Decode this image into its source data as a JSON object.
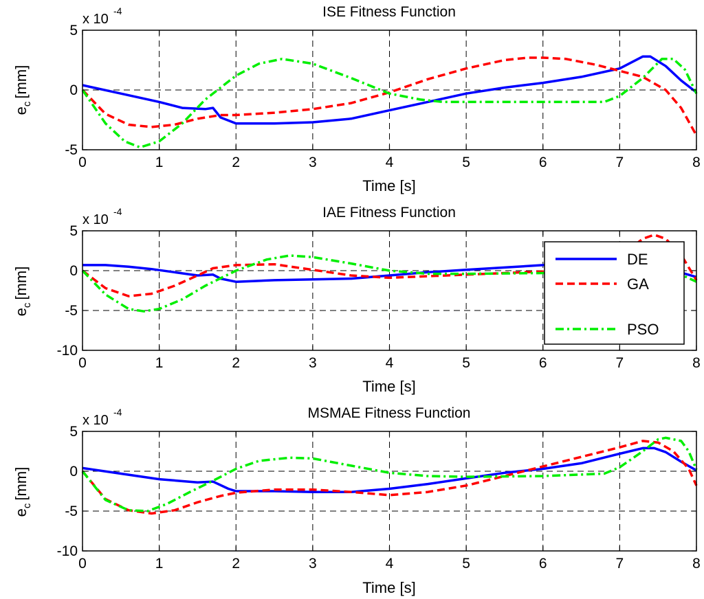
{
  "chart_data": [
    {
      "type": "line",
      "title": "ISE Fitness Function",
      "xlabel": "Time [s]",
      "ylabel": "e",
      "ylabel_sub": "c",
      "ylabel_unit": "[mm]",
      "multiplier_base": "x 10",
      "multiplier_exp": "-4",
      "xlim": [
        0,
        8
      ],
      "ylim": [
        -5,
        5
      ],
      "xticks": [
        0,
        1,
        2,
        3,
        4,
        5,
        6,
        7,
        8
      ],
      "yticks": [
        -5,
        0,
        5
      ],
      "grid": true,
      "series": [
        {
          "name": "DE",
          "color": "#0000ff",
          "style": "solid",
          "x": [
            0,
            0.5,
            1.0,
            1.3,
            1.6,
            1.7,
            1.8,
            2.0,
            2.5,
            3.0,
            3.5,
            4.0,
            4.5,
            5.0,
            5.5,
            6.0,
            6.5,
            7.0,
            7.3,
            7.4,
            7.6,
            7.8,
            8.0
          ],
          "y": [
            0.4,
            -0.3,
            -1.0,
            -1.5,
            -1.6,
            -1.5,
            -2.3,
            -2.8,
            -2.8,
            -2.7,
            -2.4,
            -1.7,
            -1.0,
            -0.3,
            0.2,
            0.6,
            1.1,
            1.8,
            2.8,
            2.8,
            2.0,
            0.8,
            -0.2
          ]
        },
        {
          "name": "GA",
          "color": "#ff0000",
          "style": "dashed",
          "x": [
            0,
            0.3,
            0.6,
            0.9,
            1.2,
            1.5,
            1.8,
            2.0,
            2.5,
            3.0,
            3.5,
            4.0,
            4.5,
            5.0,
            5.5,
            5.8,
            6.0,
            6.3,
            6.7,
            7.0,
            7.3,
            7.6,
            7.8,
            8.0
          ],
          "y": [
            0,
            -2.0,
            -2.9,
            -3.1,
            -2.9,
            -2.4,
            -2.1,
            -2.1,
            -1.9,
            -1.6,
            -1.1,
            -0.2,
            0.9,
            1.8,
            2.5,
            2.7,
            2.7,
            2.6,
            2.1,
            1.6,
            1.1,
            0,
            -1.5,
            -3.8
          ]
        },
        {
          "name": "PSO",
          "color": "#00ee00",
          "style": "dashdot",
          "x": [
            0,
            0.3,
            0.55,
            0.75,
            1.0,
            1.3,
            1.6,
            2.0,
            2.3,
            2.6,
            3.0,
            3.5,
            4.0,
            4.4,
            4.7,
            5.0,
            6.0,
            6.8,
            7.0,
            7.3,
            7.55,
            7.7,
            7.85,
            8.0
          ],
          "y": [
            0,
            -2.8,
            -4.3,
            -4.8,
            -4.3,
            -2.8,
            -0.8,
            1.2,
            2.2,
            2.6,
            2.2,
            1.0,
            -0.3,
            -0.8,
            -1.0,
            -1.0,
            -1.0,
            -1.0,
            -0.5,
            1.0,
            2.6,
            2.6,
            1.7,
            -0.3
          ]
        }
      ]
    },
    {
      "type": "line",
      "title": "IAE Fitness Function",
      "xlabel": "Time [s]",
      "ylabel": "e",
      "ylabel_sub": "c",
      "ylabel_unit": "[mm]",
      "multiplier_base": "x 10",
      "multiplier_exp": "-4",
      "xlim": [
        0,
        8
      ],
      "ylim": [
        -10,
        5
      ],
      "xticks": [
        0,
        1,
        2,
        3,
        4,
        5,
        6,
        7,
        8
      ],
      "yticks": [
        -10,
        -5,
        0,
        5
      ],
      "grid": true,
      "legend": {
        "position": "right",
        "entries": [
          "DE",
          "GA",
          "PSO"
        ]
      },
      "series": [
        {
          "name": "DE",
          "color": "#0000ff",
          "style": "solid",
          "x": [
            0,
            0.3,
            0.6,
            0.9,
            1.2,
            1.5,
            1.7,
            1.8,
            2.0,
            2.5,
            3.0,
            3.5,
            4.0,
            4.5,
            5.0,
            5.5,
            6.0,
            6.5,
            7.0,
            7.5,
            8.0
          ],
          "y": [
            0.7,
            0.7,
            0.5,
            0.2,
            -0.2,
            -0.6,
            -0.5,
            -1.0,
            -1.4,
            -1.2,
            -1.1,
            -1.0,
            -0.6,
            -0.2,
            0.1,
            0.4,
            0.7,
            0.8,
            0.8,
            0.6,
            -0.8
          ]
        },
        {
          "name": "GA",
          "color": "#ff0000",
          "style": "dashed",
          "x": [
            0,
            0.3,
            0.6,
            0.9,
            1.2,
            1.5,
            1.7,
            2.0,
            2.5,
            3.0,
            3.5,
            4.0,
            4.5,
            5.0,
            5.5,
            6.0,
            6.5,
            6.8,
            7.1,
            7.3,
            7.45,
            7.6,
            7.8,
            8.0
          ],
          "y": [
            0,
            -2.2,
            -3.2,
            -2.9,
            -1.9,
            -0.6,
            0.3,
            0.7,
            0.8,
            0.1,
            -0.6,
            -0.9,
            -0.7,
            -0.5,
            -0.3,
            -0.1,
            0.3,
            0.9,
            2.5,
            4.0,
            4.5,
            4.0,
            2.0,
            -1.2
          ]
        },
        {
          "name": "PSO",
          "color": "#00ee00",
          "style": "dashdot",
          "x": [
            0,
            0.3,
            0.6,
            0.8,
            1.0,
            1.3,
            1.6,
            2.0,
            2.4,
            2.7,
            3.0,
            3.5,
            4.0,
            4.5,
            5.0,
            6.0,
            7.0,
            7.5,
            7.8,
            8.0
          ],
          "y": [
            0,
            -3.0,
            -4.8,
            -5.1,
            -4.8,
            -3.6,
            -1.9,
            0,
            1.4,
            1.9,
            1.7,
            0.9,
            0,
            -0.4,
            -0.4,
            -0.3,
            -0.3,
            -0.2,
            -0.5,
            -1.4
          ]
        }
      ]
    },
    {
      "type": "line",
      "title": "MSMAE Fitness Function",
      "xlabel": "Time [s]",
      "ylabel": "e",
      "ylabel_sub": "c",
      "ylabel_unit": "[mm]",
      "multiplier_base": "x 10",
      "multiplier_exp": "-4",
      "xlim": [
        0,
        8
      ],
      "ylim": [
        -10,
        5
      ],
      "xticks": [
        0,
        1,
        2,
        3,
        4,
        5,
        6,
        7,
        8
      ],
      "yticks": [
        -10,
        -5,
        0,
        5
      ],
      "grid": true,
      "series": [
        {
          "name": "DE",
          "color": "#0000ff",
          "style": "solid",
          "x": [
            0,
            0.5,
            1.0,
            1.5,
            1.7,
            1.9,
            2.0,
            2.5,
            3.0,
            3.5,
            4.0,
            4.5,
            5.0,
            5.5,
            6.0,
            6.5,
            7.0,
            7.3,
            7.45,
            7.6,
            7.8,
            8.0
          ],
          "y": [
            0.4,
            -0.3,
            -1.0,
            -1.4,
            -1.3,
            -2.2,
            -2.5,
            -2.5,
            -2.6,
            -2.6,
            -2.2,
            -1.6,
            -0.9,
            -0.2,
            0.3,
            1.0,
            2.2,
            2.9,
            2.9,
            2.4,
            1.2,
            0.1
          ]
        },
        {
          "name": "GA",
          "color": "#ff0000",
          "style": "dashed",
          "x": [
            0,
            0.3,
            0.6,
            0.9,
            1.2,
            1.5,
            1.8,
            2.0,
            2.5,
            3.0,
            3.5,
            4.0,
            4.5,
            5.0,
            5.5,
            6.0,
            6.5,
            7.0,
            7.3,
            7.5,
            7.7,
            7.9,
            8.0
          ],
          "y": [
            0,
            -3.5,
            -4.9,
            -5.3,
            -4.9,
            -3.9,
            -3.1,
            -2.7,
            -2.3,
            -2.3,
            -2.6,
            -3.0,
            -2.6,
            -1.8,
            -0.6,
            0.6,
            1.8,
            3.0,
            3.8,
            3.6,
            2.5,
            0.3,
            -1.8
          ]
        },
        {
          "name": "PSO",
          "color": "#00ee00",
          "style": "dashdot",
          "x": [
            0,
            0.3,
            0.6,
            0.85,
            1.1,
            1.4,
            1.7,
            2.0,
            2.3,
            2.7,
            3.0,
            3.5,
            4.0,
            4.5,
            5.0,
            6.0,
            6.8,
            7.0,
            7.3,
            7.5,
            7.6,
            7.8,
            7.9,
            8.0
          ],
          "y": [
            0,
            -3.6,
            -4.9,
            -5.0,
            -4.1,
            -2.6,
            -1.2,
            0.3,
            1.3,
            1.7,
            1.6,
            0.7,
            -0.2,
            -0.6,
            -0.7,
            -0.6,
            -0.3,
            0.5,
            2.5,
            4.0,
            4.2,
            3.8,
            2.5,
            0.2
          ]
        }
      ]
    }
  ]
}
